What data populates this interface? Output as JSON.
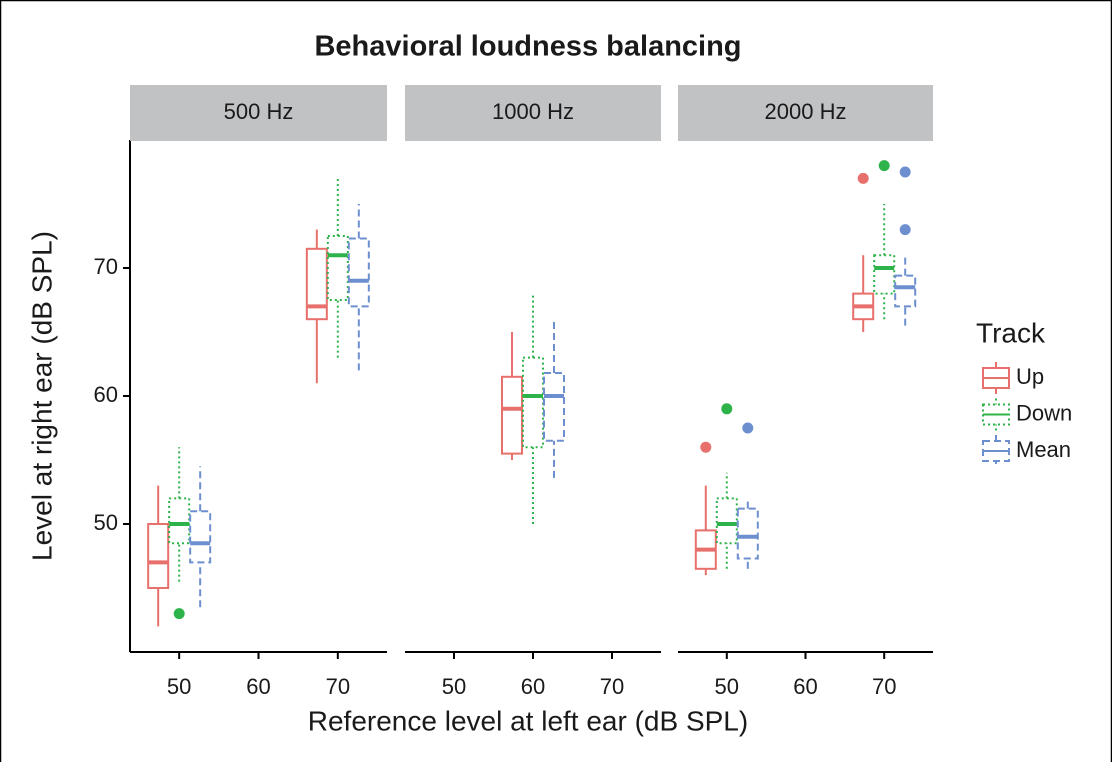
{
  "chart_data": {
    "type": "box",
    "title": "Behavioral loudness balancing",
    "x_label": "Reference level at left ear (dB SPL)",
    "y_label": "Level at right ear (dB SPL)",
    "ylim": [
      40,
      80
    ],
    "yticks": [
      50,
      60,
      70
    ],
    "xlim": [
      43.8,
      76.2
    ],
    "xticks": [
      50,
      60,
      70
    ],
    "legend_title": "Track",
    "legend_position": "right",
    "panels": [
      {
        "label": "500 Hz",
        "x": [
          50,
          70
        ]
      },
      {
        "label": "1000 Hz",
        "x": [
          60
        ]
      },
      {
        "label": "2000 Hz",
        "x": [
          50,
          70
        ]
      }
    ],
    "series": [
      {
        "name": "Up",
        "color": "#e8706c",
        "linetype": "solid",
        "boxes": [
          [
            {
              "min": 42,
              "q1": 45,
              "median": 47,
              "q3": 50,
              "max": 53,
              "outliers": []
            },
            {
              "min": 61,
              "q1": 66,
              "median": 67,
              "q3": 71.5,
              "max": 73,
              "outliers": []
            }
          ],
          [
            {
              "min": 55,
              "q1": 55.5,
              "median": 59,
              "q3": 61.5,
              "max": 65,
              "outliers": []
            }
          ],
          [
            {
              "min": 46,
              "q1": 46.5,
              "median": 48,
              "q3": 49.5,
              "max": 53,
              "outliers": [
                56
              ]
            },
            {
              "min": 65,
              "q1": 66,
              "median": 67,
              "q3": 68,
              "max": 71,
              "outliers": [
                77
              ]
            }
          ]
        ]
      },
      {
        "name": "Down",
        "color": "#2eb34b",
        "linetype": "dotted",
        "boxes": [
          [
            {
              "min": 45.5,
              "q1": 48.5,
              "median": 50,
              "q3": 52,
              "max": 56,
              "outliers": [
                43
              ]
            },
            {
              "min": 63,
              "q1": 67.5,
              "median": 71,
              "q3": 72.5,
              "max": 77,
              "outliers": []
            }
          ],
          [
            {
              "min": 50,
              "q1": 56,
              "median": 60,
              "q3": 63,
              "max": 68,
              "outliers": []
            }
          ],
          [
            {
              "min": 46.5,
              "q1": 48.5,
              "median": 50,
              "q3": 52,
              "max": 54,
              "outliers": [
                59
              ]
            },
            {
              "min": 66,
              "q1": 68,
              "median": 70,
              "q3": 71,
              "max": 75,
              "outliers": [
                78
              ]
            }
          ]
        ]
      },
      {
        "name": "Mean",
        "color": "#6d8fcf",
        "linetype": "dashed",
        "boxes": [
          [
            {
              "min": 43.5,
              "q1": 47,
              "median": 48.5,
              "q3": 51,
              "max": 54.5,
              "outliers": []
            },
            {
              "min": 62,
              "q1": 67,
              "median": 69,
              "q3": 72.3,
              "max": 75,
              "outliers": []
            }
          ],
          [
            {
              "min": 53.6,
              "q1": 56.5,
              "median": 60,
              "q3": 61.8,
              "max": 66,
              "outliers": []
            }
          ],
          [
            {
              "min": 46.5,
              "q1": 47.3,
              "median": 49,
              "q3": 51.2,
              "max": 52,
              "outliers": [
                57.5
              ]
            },
            {
              "min": 65.5,
              "q1": 67,
              "median": 68.5,
              "q3": 69.4,
              "max": 71,
              "outliers": [
                77.5,
                73
              ]
            }
          ]
        ]
      }
    ]
  }
}
